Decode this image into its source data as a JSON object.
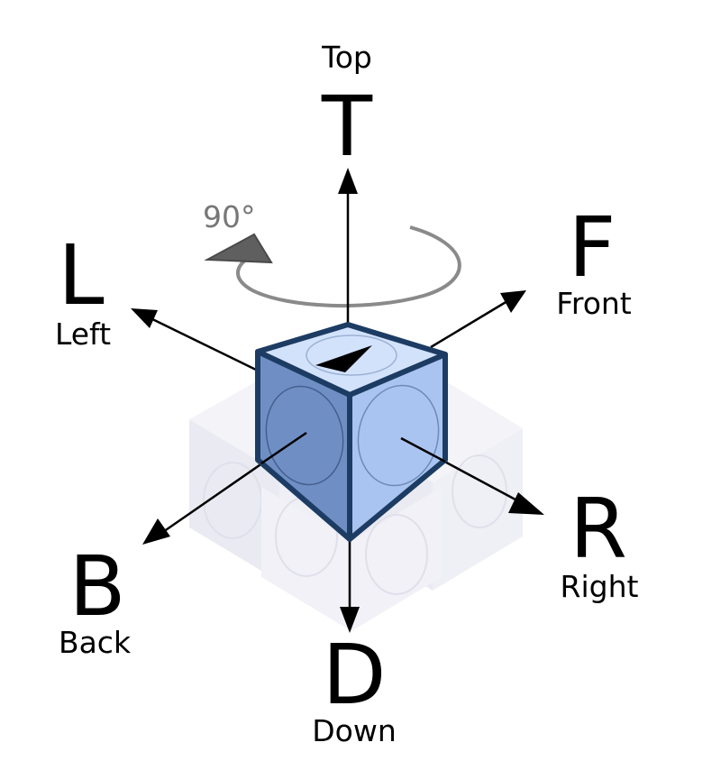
{
  "directions": {
    "top": {
      "letter": "T",
      "word": "Top"
    },
    "front": {
      "letter": "F",
      "word": "Front"
    },
    "left": {
      "letter": "L",
      "word": "Left"
    },
    "right": {
      "letter": "R",
      "word": "Right"
    },
    "back": {
      "letter": "B",
      "word": "Back"
    },
    "down": {
      "letter": "D",
      "word": "Down"
    }
  },
  "rotation": {
    "label": "90°"
  },
  "colors": {
    "cube_left_face": "#6f8fc4",
    "cube_right_face": "#a9c4f0",
    "cube_top_face": "#d2e2fb",
    "cube_edge": "#1d3c63",
    "ghost_cube": "#dcdcec",
    "rotation_arrow": "#8a8a8a",
    "text": "#000000"
  }
}
